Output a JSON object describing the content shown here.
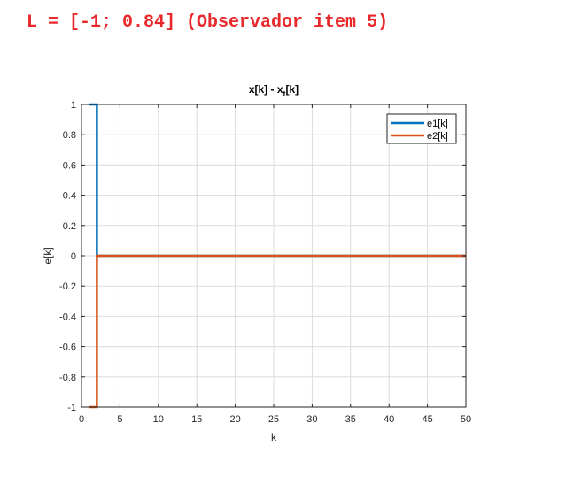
{
  "header": {
    "text": "L = [-1; 0.84] (Observador item 5)"
  },
  "colors": {
    "header": "#e8282b",
    "e1": "#0072bd",
    "e2": "#d95319",
    "grid": "#dcdcdc",
    "axis": "#262626"
  },
  "chart_data": {
    "type": "line",
    "title_main": "x[k] - x",
    "title_sub": "t",
    "title_tail": "[k]",
    "xlabel": "k",
    "ylabel": "e[k]",
    "xlim": [
      0,
      50
    ],
    "ylim": [
      -1,
      1
    ],
    "xticks": [
      0,
      5,
      10,
      15,
      20,
      25,
      30,
      35,
      40,
      45,
      50
    ],
    "yticks": [
      -1,
      -0.8,
      -0.6,
      -0.4,
      -0.2,
      0,
      0.2,
      0.4,
      0.6,
      0.8,
      1
    ],
    "xtick_labels": [
      "0",
      "5",
      "10",
      "15",
      "20",
      "25",
      "30",
      "35",
      "40",
      "45",
      "50"
    ],
    "ytick_labels": [
      "-1",
      "-0.8",
      "-0.6",
      "-0.4",
      "-0.2",
      "0",
      "0.2",
      "0.4",
      "0.6",
      "0.8",
      "1"
    ],
    "grid": true,
    "legend_position": "top-right",
    "series": [
      {
        "name": "e1[k]",
        "step": "post",
        "x": [
          1,
          2,
          50
        ],
        "y": [
          1,
          0,
          0
        ]
      },
      {
        "name": "e2[k]",
        "step": "post",
        "x": [
          1,
          2,
          50
        ],
        "y": [
          -1,
          0,
          0
        ]
      }
    ]
  }
}
